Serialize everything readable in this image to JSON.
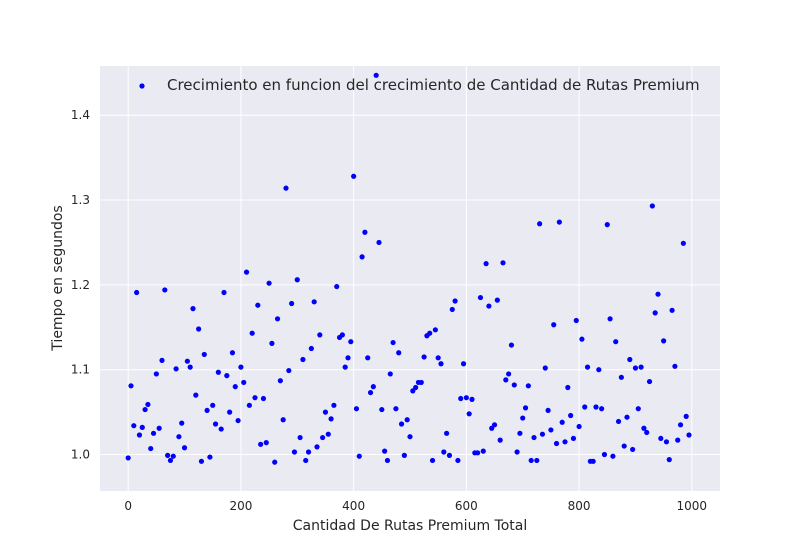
{
  "chart_data": {
    "type": "scatter",
    "xlabel": "Cantidad De Rutas Premium Total",
    "ylabel": "Tiempo en segundos",
    "xlim": [
      -50,
      1050
    ],
    "ylim": [
      0.957,
      1.458
    ],
    "xticks": [
      0,
      200,
      400,
      600,
      800,
      1000
    ],
    "yticks": [
      1.0,
      1.1,
      1.2,
      1.3,
      1.4
    ],
    "grid": true,
    "legend_position": "top",
    "point_color": "#0000ff",
    "plot_background": "#eaeaf2",
    "series": [
      {
        "name": "Crecimiento en funcion del crecimiento de Cantidad de Rutas Premium",
        "points": [
          [
            0,
            0.996
          ],
          [
            5,
            1.081
          ],
          [
            10,
            1.034
          ],
          [
            15,
            1.191
          ],
          [
            20,
            1.023
          ],
          [
            25,
            1.032
          ],
          [
            30,
            1.053
          ],
          [
            35,
            1.059
          ],
          [
            40,
            1.007
          ],
          [
            45,
            1.025
          ],
          [
            50,
            1.095
          ],
          [
            55,
            1.031
          ],
          [
            60,
            1.111
          ],
          [
            65,
            1.194
          ],
          [
            70,
            0.999
          ],
          [
            75,
            0.993
          ],
          [
            80,
            0.998
          ],
          [
            85,
            1.101
          ],
          [
            90,
            1.021
          ],
          [
            95,
            1.037
          ],
          [
            100,
            1.008
          ],
          [
            105,
            1.11
          ],
          [
            110,
            1.103
          ],
          [
            115,
            1.172
          ],
          [
            120,
            1.07
          ],
          [
            125,
            1.148
          ],
          [
            130,
            0.992
          ],
          [
            135,
            1.118
          ],
          [
            140,
            1.052
          ],
          [
            145,
            0.997
          ],
          [
            150,
            1.058
          ],
          [
            155,
            1.036
          ],
          [
            160,
            1.097
          ],
          [
            165,
            1.03
          ],
          [
            170,
            1.191
          ],
          [
            175,
            1.093
          ],
          [
            180,
            1.05
          ],
          [
            185,
            1.12
          ],
          [
            190,
            1.08
          ],
          [
            195,
            1.04
          ],
          [
            200,
            1.103
          ],
          [
            205,
            1.085
          ],
          [
            210,
            1.215
          ],
          [
            215,
            1.058
          ],
          [
            220,
            1.143
          ],
          [
            225,
            1.067
          ],
          [
            230,
            1.176
          ],
          [
            235,
            1.012
          ],
          [
            240,
            1.066
          ],
          [
            245,
            1.014
          ],
          [
            250,
            1.202
          ],
          [
            255,
            1.131
          ],
          [
            260,
            0.991
          ],
          [
            265,
            1.16
          ],
          [
            270,
            1.087
          ],
          [
            275,
            1.041
          ],
          [
            280,
            1.314
          ],
          [
            285,
            1.099
          ],
          [
            290,
            1.178
          ],
          [
            295,
            1.003
          ],
          [
            300,
            1.206
          ],
          [
            305,
            1.02
          ],
          [
            310,
            1.112
          ],
          [
            315,
            0.993
          ],
          [
            320,
            1.003
          ],
          [
            325,
            1.125
          ],
          [
            330,
            1.18
          ],
          [
            335,
            1.009
          ],
          [
            340,
            1.141
          ],
          [
            345,
            1.02
          ],
          [
            350,
            1.05
          ],
          [
            355,
            1.024
          ],
          [
            360,
            1.042
          ],
          [
            365,
            1.058
          ],
          [
            370,
            1.198
          ],
          [
            375,
            1.138
          ],
          [
            380,
            1.141
          ],
          [
            385,
            1.103
          ],
          [
            390,
            1.114
          ],
          [
            395,
            1.133
          ],
          [
            400,
            1.328
          ],
          [
            405,
            1.054
          ],
          [
            410,
            0.998
          ],
          [
            415,
            1.233
          ],
          [
            420,
            1.262
          ],
          [
            425,
            1.114
          ],
          [
            430,
            1.073
          ],
          [
            435,
            1.08
          ],
          [
            440,
            1.447
          ],
          [
            445,
            1.25
          ],
          [
            450,
            1.053
          ],
          [
            455,
            1.004
          ],
          [
            460,
            0.993
          ],
          [
            465,
            1.095
          ],
          [
            470,
            1.132
          ],
          [
            475,
            1.054
          ],
          [
            480,
            1.12
          ],
          [
            485,
            1.036
          ],
          [
            490,
            0.999
          ],
          [
            495,
            1.041
          ],
          [
            500,
            1.021
          ],
          [
            505,
            1.075
          ],
          [
            510,
            1.079
          ],
          [
            515,
            1.085
          ],
          [
            520,
            1.085
          ],
          [
            525,
            1.115
          ],
          [
            530,
            1.14
          ],
          [
            535,
            1.143
          ],
          [
            540,
            0.993
          ],
          [
            545,
            1.147
          ],
          [
            550,
            1.114
          ],
          [
            555,
            1.107
          ],
          [
            560,
            1.003
          ],
          [
            565,
            1.025
          ],
          [
            570,
            0.999
          ],
          [
            575,
            1.171
          ],
          [
            580,
            1.181
          ],
          [
            585,
            0.993
          ],
          [
            590,
            1.066
          ],
          [
            595,
            1.107
          ],
          [
            600,
            1.067
          ],
          [
            605,
            1.048
          ],
          [
            610,
            1.065
          ],
          [
            615,
            1.002
          ],
          [
            620,
            1.002
          ],
          [
            625,
            1.185
          ],
          [
            630,
            1.004
          ],
          [
            635,
            1.225
          ],
          [
            640,
            1.175
          ],
          [
            645,
            1.031
          ],
          [
            650,
            1.035
          ],
          [
            655,
            1.182
          ],
          [
            660,
            1.017
          ],
          [
            665,
            1.226
          ],
          [
            670,
            1.088
          ],
          [
            675,
            1.095
          ],
          [
            680,
            1.129
          ],
          [
            685,
            1.082
          ],
          [
            690,
            1.003
          ],
          [
            695,
            1.025
          ],
          [
            700,
            1.043
          ],
          [
            705,
            1.055
          ],
          [
            710,
            1.081
          ],
          [
            715,
            0.993
          ],
          [
            720,
            1.02
          ],
          [
            725,
            0.993
          ],
          [
            730,
            1.272
          ],
          [
            735,
            1.024
          ],
          [
            740,
            1.102
          ],
          [
            745,
            1.052
          ],
          [
            750,
            1.029
          ],
          [
            755,
            1.153
          ],
          [
            760,
            1.013
          ],
          [
            765,
            1.274
          ],
          [
            770,
            1.038
          ],
          [
            775,
            1.015
          ],
          [
            780,
            1.079
          ],
          [
            785,
            1.046
          ],
          [
            790,
            1.019
          ],
          [
            795,
            1.158
          ],
          [
            800,
            1.033
          ],
          [
            805,
            1.136
          ],
          [
            810,
            1.056
          ],
          [
            815,
            1.103
          ],
          [
            820,
            0.992
          ],
          [
            825,
            0.992
          ],
          [
            830,
            1.056
          ],
          [
            835,
            1.1
          ],
          [
            840,
            1.054
          ],
          [
            845,
            1.0
          ],
          [
            850,
            1.271
          ],
          [
            855,
            1.16
          ],
          [
            860,
            0.998
          ],
          [
            865,
            1.133
          ],
          [
            870,
            1.039
          ],
          [
            875,
            1.091
          ],
          [
            880,
            1.01
          ],
          [
            885,
            1.044
          ],
          [
            890,
            1.112
          ],
          [
            895,
            1.006
          ],
          [
            900,
            1.102
          ],
          [
            905,
            1.054
          ],
          [
            910,
            1.103
          ],
          [
            915,
            1.031
          ],
          [
            920,
            1.026
          ],
          [
            925,
            1.086
          ],
          [
            930,
            1.293
          ],
          [
            935,
            1.167
          ],
          [
            940,
            1.189
          ],
          [
            945,
            1.019
          ],
          [
            950,
            1.134
          ],
          [
            955,
            1.015
          ],
          [
            960,
            0.994
          ],
          [
            965,
            1.17
          ],
          [
            970,
            1.104
          ],
          [
            975,
            1.017
          ],
          [
            980,
            1.035
          ],
          [
            985,
            1.249
          ],
          [
            990,
            1.045
          ],
          [
            995,
            1.023
          ]
        ]
      }
    ]
  }
}
